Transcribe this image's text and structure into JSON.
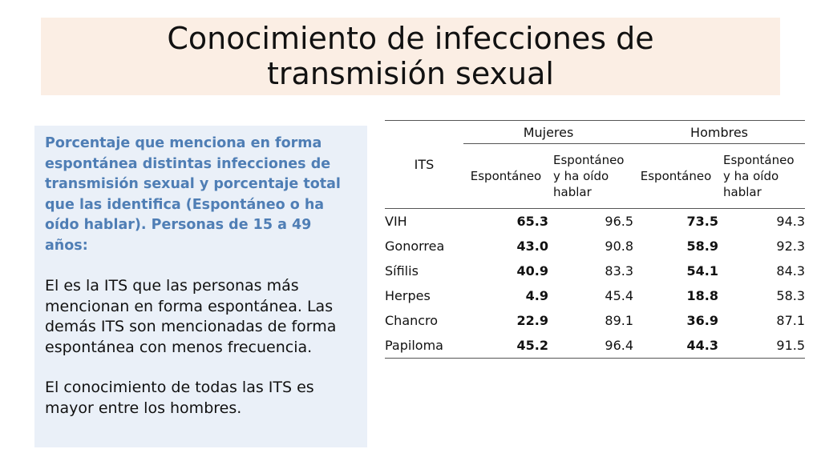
{
  "title": {
    "line1": "Conocimiento de infecciones de",
    "line2": "transmisión sexual"
  },
  "sidebar": {
    "heading": "Porcentaje  que menciona en forma espontánea distintas infecciones de transmisión sexual y porcentaje total que las identifica (Espontáneo o ha oído hablar). Personas de 15 a 49 años:",
    "para1": "El es la ITS que las personas más mencionan en forma espontánea. Las demás ITS son mencionadas de forma espontánea con menos frecuencia.",
    "para2": "El conocimiento de todas las ITS es mayor entre los hombres."
  },
  "table": {
    "its_label": "ITS",
    "group_women": "Mujeres",
    "group_men": "Hombres",
    "col_spont": "Espontáneo",
    "col_heard": "Espontáneo y ha oído hablar",
    "rows": [
      {
        "name": "VIH",
        "w_spont": "65.3",
        "w_heard": "96.5",
        "m_spont": "73.5",
        "m_heard": "94.3"
      },
      {
        "name": "Gonorrea",
        "w_spont": "43.0",
        "w_heard": "90.8",
        "m_spont": "58.9",
        "m_heard": "92.3"
      },
      {
        "name": "Sífilis",
        "w_spont": "40.9",
        "w_heard": "83.3",
        "m_spont": "54.1",
        "m_heard": "84.3"
      },
      {
        "name": "Herpes",
        "w_spont": "4.9",
        "w_heard": "45.4",
        "m_spont": "18.8",
        "m_heard": "58.3"
      },
      {
        "name": "Chancro",
        "w_spont": "22.9",
        "w_heard": "89.1",
        "m_spont": "36.9",
        "m_heard": "87.1"
      },
      {
        "name": "Papiloma",
        "w_spont": "45.2",
        "w_heard": "96.4",
        "m_spont": "44.3",
        "m_heard": "91.5"
      }
    ]
  }
}
